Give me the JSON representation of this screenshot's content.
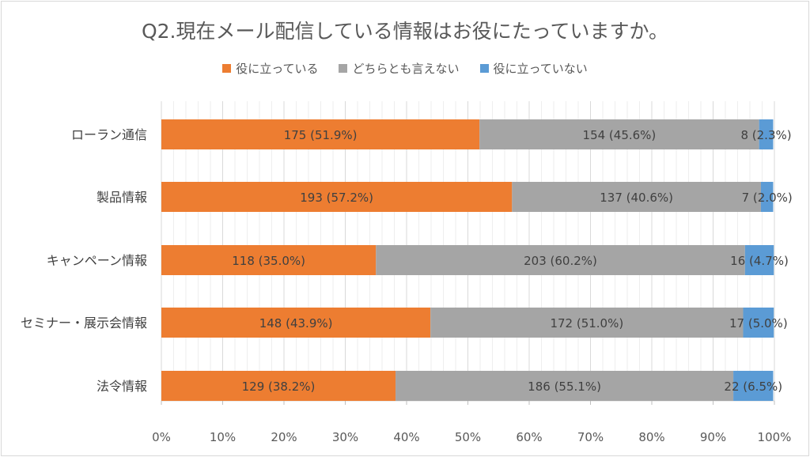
{
  "chart_data": {
    "type": "bar",
    "orientation": "horizontal",
    "stacked": "percent",
    "title": "Q2.現在メール配信している情報はお役にたっていますか。",
    "categories": [
      "ローラン通信",
      "製品情報",
      "キャンペーン情報",
      "セミナー・展示会情報",
      "法令情報"
    ],
    "series": [
      {
        "name": "役に立っている",
        "color": "#ed7d31",
        "values": [
          51.9,
          57.2,
          35.0,
          43.9,
          38.2
        ],
        "labels": [
          "175 (51.9%)",
          "193 (57.2%)",
          "118 (35.0%)",
          "148 (43.9%)",
          "129 (38.2%)"
        ]
      },
      {
        "name": "どちらとも言えない",
        "color": "#a5a5a5",
        "values": [
          45.6,
          40.6,
          60.2,
          51.0,
          55.1
        ],
        "labels": [
          "154 (45.6%)",
          "137 (40.6%)",
          "203 (60.2%)",
          "172 (51.0%)",
          "186 (55.1%)"
        ]
      },
      {
        "name": "役に立っていない",
        "color": "#5b9bd5",
        "values": [
          2.3,
          2.0,
          4.7,
          5.0,
          6.5
        ],
        "labels": [
          "8 (2.3%)",
          "7 (2.0%)",
          "16 (4.7%)",
          "17 (5.0%)",
          "22 (6.5%)"
        ]
      }
    ],
    "xlim": [
      0,
      100
    ],
    "xticks": [
      "0%",
      "10%",
      "20%",
      "30%",
      "40%",
      "50%",
      "60%",
      "70%",
      "80%",
      "90%",
      "100%"
    ],
    "grid": true,
    "legend_position": "top"
  }
}
